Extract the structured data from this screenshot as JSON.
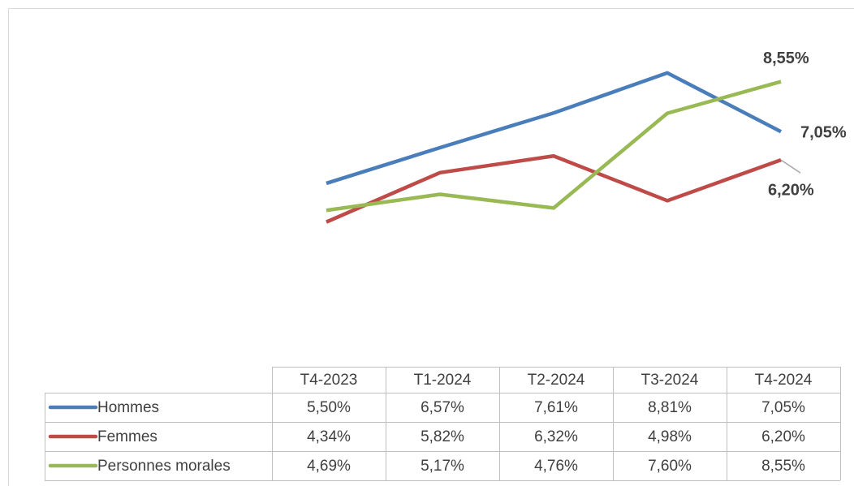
{
  "chart_data": {
    "type": "line",
    "categories": [
      "T4-2023",
      "T1-2024",
      "T2-2024",
      "T3-2024",
      "T4-2024"
    ],
    "series": [
      {
        "name": "Hommes",
        "color": "#4a7ebb",
        "values": [
          5.5,
          6.57,
          7.61,
          8.81,
          7.05
        ],
        "value_labels": [
          "5,50%",
          "6,57%",
          "7,61%",
          "8,81%",
          "7,05%"
        ]
      },
      {
        "name": "Femmes",
        "color": "#be4b48",
        "values": [
          4.34,
          5.82,
          6.32,
          4.98,
          6.2
        ],
        "value_labels": [
          "4,34%",
          "5,82%",
          "6,32%",
          "4,98%",
          "6,20%"
        ]
      },
      {
        "name": "Personnes morales",
        "color": "#98b954",
        "values": [
          4.69,
          5.17,
          4.76,
          7.6,
          8.55
        ],
        "value_labels": [
          "4,69%",
          "5,17%",
          "4,76%",
          "7,60%",
          "8,55%"
        ]
      }
    ],
    "ylim": [
      0,
      10
    ]
  }
}
